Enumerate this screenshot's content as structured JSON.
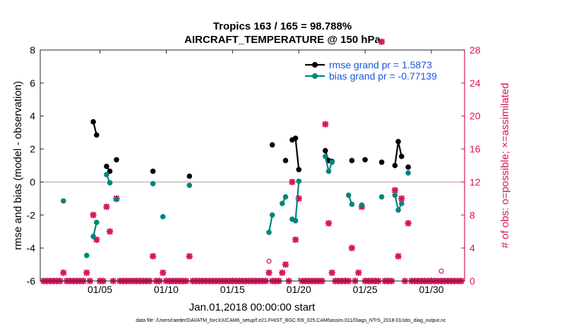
{
  "chart_data": {
    "type": "line",
    "title_line1": "Tropics 163 / 165 = 98.788%",
    "title_line2": "AIRCRAFT_TEMPERATURE @ 150 hPa",
    "xlabel": "Jan.01,2018 00:00:00 start",
    "ylabel_left": "rmse and bias (model - observation)",
    "ylabel_right": "# of obs: o=possible; ×=assimilated",
    "footer": "data file: /Users/raeder/DAI/ATM_forcXX/CAM6_setup/f.e21.FHIST_BGC.f09_025.CAM6assim.011/Diags_NTrS_2018-01/obs_diag_output.nc",
    "xlim": [
      0.5,
      32.5
    ],
    "ylim_left": [
      -6,
      8
    ],
    "ylim_right": [
      0,
      28
    ],
    "x_ticks": [
      5,
      10,
      15,
      20,
      25,
      30
    ],
    "x_tick_labels": [
      "01/05",
      "01/10",
      "01/15",
      "01/20",
      "01/25",
      "01/30"
    ],
    "y_left_ticks": [
      -6,
      -4,
      -2,
      0,
      2,
      4,
      6,
      8
    ],
    "y_left_tick_labels": [
      "-6",
      "-4",
      "-2",
      "0",
      "2",
      "4",
      "6",
      "8"
    ],
    "y_right_ticks": [
      0,
      4,
      8,
      12,
      16,
      20,
      24,
      28
    ],
    "y_right_tick_labels": [
      "0",
      "4",
      "8",
      "12",
      "16",
      "20",
      "24",
      "28"
    ],
    "colors": {
      "rmse": "#000000",
      "bias": "#00857e",
      "obs": "#d6145c",
      "zero_line": "#c8a8a8",
      "legend_text": "#1a55e0"
    },
    "series": [
      {
        "name": "rmse",
        "legend": "rmse grand pr = 1.5873",
        "segments": [
          [
            [
              4.5,
              3.65
            ],
            [
              4.75,
              2.85
            ]
          ],
          [
            [
              5.5,
              0.95
            ],
            [
              5.75,
              0.65
            ]
          ],
          [
            [
              6.25,
              1.35
            ]
          ],
          [
            [
              9.0,
              0.65
            ]
          ],
          [
            [
              11.75,
              0.35
            ]
          ],
          [
            [
              18.0,
              2.25
            ]
          ],
          [
            [
              19.0,
              1.3
            ]
          ],
          [
            [
              19.5,
              2.55
            ],
            [
              19.75,
              2.65
            ],
            [
              20.0,
              0.75
            ]
          ],
          [
            [
              22.0,
              1.9
            ],
            [
              22.25,
              1.3
            ],
            [
              22.5,
              1.25
            ]
          ],
          [
            [
              24.0,
              1.3
            ]
          ],
          [
            [
              25.0,
              1.35
            ]
          ],
          [
            [
              26.25,
              1.2
            ]
          ],
          [
            [
              27.25,
              1.0
            ],
            [
              27.5,
              2.45
            ],
            [
              27.75,
              1.55
            ]
          ],
          [
            [
              28.25,
              0.9
            ]
          ]
        ]
      },
      {
        "name": "bias",
        "legend": "bias grand pr = -0.77139",
        "segments": [
          [
            [
              2.25,
              -1.15
            ]
          ],
          [
            [
              4.0,
              -4.45
            ]
          ],
          [
            [
              4.5,
              -3.3
            ],
            [
              4.75,
              -2.45
            ]
          ],
          [
            [
              5.5,
              0.45
            ],
            [
              5.75,
              -0.05
            ]
          ],
          [
            [
              6.25,
              -1.05
            ]
          ],
          [
            [
              9.0,
              -0.1
            ]
          ],
          [
            [
              9.75,
              -2.1
            ]
          ],
          [
            [
              11.75,
              -0.2
            ]
          ],
          [
            [
              17.75,
              -3.05
            ],
            [
              18.0,
              -2.0
            ]
          ],
          [
            [
              18.75,
              -1.3
            ],
            [
              19.0,
              -0.9
            ]
          ],
          [
            [
              19.5,
              -2.25
            ],
            [
              19.75,
              -2.35
            ],
            [
              20.0,
              0.05
            ]
          ],
          [
            [
              22.0,
              1.55
            ],
            [
              22.25,
              0.65
            ],
            [
              22.5,
              1.2
            ]
          ],
          [
            [
              23.75,
              -0.8
            ],
            [
              24.0,
              -1.35
            ]
          ],
          [
            [
              24.75,
              -1.4
            ]
          ],
          [
            [
              26.25,
              -0.9
            ]
          ],
          [
            [
              27.25,
              -0.8
            ],
            [
              27.5,
              -1.7
            ],
            [
              27.75,
              -1.3
            ]
          ],
          [
            [
              28.25,
              0.55
            ]
          ]
        ]
      }
    ],
    "obs_possible": [
      [
        17.75,
        2.4
      ],
      [
        30.75,
        1.2
      ]
    ],
    "obs_assimilated": [
      [
        0.75,
        0
      ],
      [
        1.0,
        0
      ],
      [
        1.25,
        0
      ],
      [
        1.5,
        0
      ],
      [
        1.75,
        0
      ],
      [
        2.0,
        0
      ],
      [
        2.25,
        1
      ],
      [
        2.5,
        0
      ],
      [
        2.75,
        0
      ],
      [
        3.0,
        0
      ],
      [
        3.25,
        0
      ],
      [
        3.5,
        0
      ],
      [
        3.75,
        0
      ],
      [
        4.0,
        1
      ],
      [
        4.25,
        0
      ],
      [
        4.5,
        8
      ],
      [
        4.75,
        5
      ],
      [
        5.0,
        0
      ],
      [
        5.25,
        0
      ],
      [
        5.5,
        9
      ],
      [
        5.75,
        6
      ],
      [
        6.0,
        0
      ],
      [
        6.25,
        10
      ],
      [
        6.5,
        0
      ],
      [
        6.75,
        0
      ],
      [
        7.0,
        0
      ],
      [
        7.25,
        0
      ],
      [
        7.5,
        0
      ],
      [
        7.75,
        0
      ],
      [
        8.0,
        0
      ],
      [
        8.25,
        0
      ],
      [
        8.5,
        0
      ],
      [
        8.75,
        0
      ],
      [
        9.0,
        3
      ],
      [
        9.25,
        0
      ],
      [
        9.5,
        0
      ],
      [
        9.75,
        1
      ],
      [
        10.0,
        0
      ],
      [
        10.25,
        0
      ],
      [
        10.5,
        0
      ],
      [
        10.75,
        0
      ],
      [
        11.0,
        0
      ],
      [
        11.25,
        0
      ],
      [
        11.5,
        0
      ],
      [
        11.75,
        3
      ],
      [
        12.0,
        0
      ],
      [
        12.25,
        0
      ],
      [
        12.5,
        0
      ],
      [
        12.75,
        0
      ],
      [
        13.0,
        0
      ],
      [
        13.25,
        0
      ],
      [
        13.5,
        0
      ],
      [
        13.75,
        0
      ],
      [
        14.0,
        0
      ],
      [
        14.25,
        0
      ],
      [
        14.5,
        0
      ],
      [
        14.75,
        0
      ],
      [
        15.0,
        0
      ],
      [
        15.25,
        0
      ],
      [
        15.5,
        0
      ],
      [
        15.75,
        0
      ],
      [
        16.0,
        0
      ],
      [
        16.25,
        0
      ],
      [
        16.5,
        0
      ],
      [
        16.75,
        0
      ],
      [
        17.0,
        0
      ],
      [
        17.25,
        0
      ],
      [
        17.5,
        0
      ],
      [
        17.75,
        1
      ],
      [
        18.0,
        0
      ],
      [
        18.25,
        0
      ],
      [
        18.5,
        0
      ],
      [
        18.75,
        1
      ],
      [
        19.0,
        2
      ],
      [
        19.25,
        0
      ],
      [
        19.5,
        12
      ],
      [
        19.75,
        5
      ],
      [
        20.0,
        10
      ],
      [
        20.25,
        0
      ],
      [
        20.5,
        0
      ],
      [
        20.75,
        0
      ],
      [
        21.0,
        0
      ],
      [
        21.25,
        0
      ],
      [
        21.5,
        0
      ],
      [
        21.75,
        0
      ],
      [
        22.0,
        19
      ],
      [
        22.25,
        7
      ],
      [
        22.5,
        1
      ],
      [
        22.75,
        0
      ],
      [
        23.0,
        0
      ],
      [
        23.25,
        0
      ],
      [
        23.5,
        0
      ],
      [
        23.75,
        0
      ],
      [
        24.0,
        4
      ],
      [
        24.25,
        0
      ],
      [
        24.5,
        1
      ],
      [
        24.75,
        9
      ],
      [
        25.0,
        0
      ],
      [
        25.25,
        0
      ],
      [
        25.5,
        0
      ],
      [
        25.75,
        0
      ],
      [
        26.0,
        0
      ],
      [
        26.25,
        29
      ],
      [
        26.5,
        0
      ],
      [
        26.75,
        0
      ],
      [
        27.0,
        0
      ],
      [
        27.25,
        11
      ],
      [
        27.5,
        3
      ],
      [
        27.75,
        10
      ],
      [
        28.0,
        0
      ],
      [
        28.25,
        7
      ],
      [
        28.5,
        0
      ],
      [
        28.75,
        0
      ],
      [
        29.0,
        0
      ],
      [
        29.25,
        0
      ],
      [
        29.5,
        0
      ],
      [
        29.75,
        0
      ],
      [
        30.0,
        0
      ],
      [
        30.25,
        0
      ],
      [
        30.5,
        0
      ],
      [
        30.75,
        0
      ],
      [
        31.0,
        0
      ],
      [
        31.25,
        0
      ],
      [
        31.5,
        0
      ],
      [
        31.75,
        0
      ],
      [
        32.0,
        0
      ],
      [
        32.25,
        0
      ]
    ]
  }
}
